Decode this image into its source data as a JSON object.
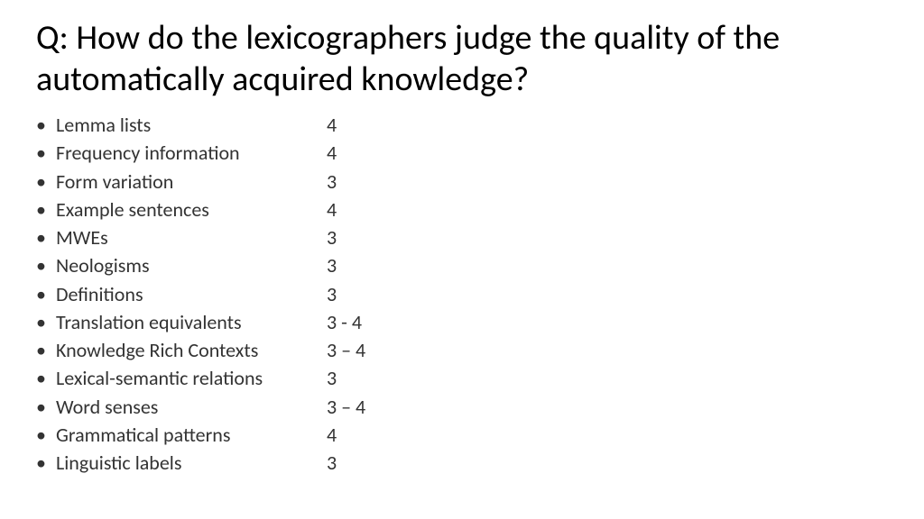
{
  "title": "Q: How do the lexicographers judge the quality of the automatically acquired knowledge?",
  "title_fontsize": 38,
  "title_color": "#000000",
  "body_fontsize": 22,
  "body_color": "#333333",
  "background_color": "#ffffff",
  "bullet_char": "•",
  "items": [
    {
      "label": "Lemma lists",
      "value": "4"
    },
    {
      "label": "Frequency information",
      "value": "4"
    },
    {
      "label": "Form variation",
      "value": "3"
    },
    {
      "label": "Example sentences",
      "value": "4"
    },
    {
      "label": "MWEs",
      "value": "3"
    },
    {
      "label": "Neologisms",
      "value": "3"
    },
    {
      "label": "Definitions",
      "value": "3"
    },
    {
      "label": "Translation equivalents",
      "value": "3 - 4"
    },
    {
      "label": "Knowledge Rich Contexts",
      "value": "3 – 4"
    },
    {
      "label": "Lexical-semantic relations",
      "value": "3"
    },
    {
      "label": "Word senses",
      "value": "3 – 4"
    },
    {
      "label": "Grammatical patterns",
      "value": "4"
    },
    {
      "label": "Linguistic labels",
      "value": "3"
    }
  ]
}
